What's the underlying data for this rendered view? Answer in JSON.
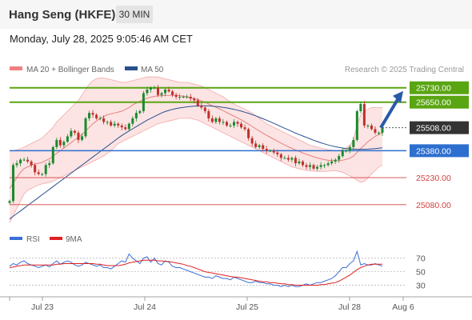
{
  "header": {
    "title": "Hang Seng (HKFE)",
    "timeframe": "30 MIN"
  },
  "timestamp": "Monday, July 28, 2025 9:05:46 AM CET",
  "chart_data": [
    {
      "type": "candlestick",
      "title": "Hang Seng (HKFE)",
      "legend": [
        {
          "name": "MA 20 + Bollinger Bands",
          "color": "#f08080"
        },
        {
          "name": "MA 50",
          "color": "#2a4f8f"
        }
      ],
      "credit": "Research © 2025 Trading Central",
      "y_range": [
        24950,
        25800
      ],
      "x_labels": [
        "Jul 23",
        "Jul 24",
        "Jul 25",
        "Jul 28",
        "Aug 6"
      ],
      "levels": [
        {
          "value": 25730,
          "label": "25730.00",
          "kind": "resistance",
          "color": "#5aa512"
        },
        {
          "value": 25650,
          "label": "25650.00",
          "kind": "resistance",
          "color": "#5aa512"
        },
        {
          "value": 25508,
          "label": "25508.00",
          "kind": "last",
          "color": "#333333"
        },
        {
          "value": 25380,
          "label": "25380.00",
          "kind": "pivot",
          "color": "#2c6fcf"
        },
        {
          "value": 25230,
          "label": "25230.00",
          "kind": "support",
          "color": "#d44040"
        },
        {
          "value": 25080,
          "label": "25080.00",
          "kind": "support",
          "color": "#d44040"
        }
      ],
      "arrow": {
        "from": 25508,
        "to": 25730,
        "direction": "up",
        "color": "#2a5aa8"
      },
      "close": [
        25100,
        25300,
        25310,
        25330,
        25330,
        25320,
        25300,
        25260,
        25250,
        25250,
        25300,
        25310,
        25400,
        25440,
        25410,
        25430,
        25460,
        25490,
        25480,
        25440,
        25460,
        25560,
        25590,
        25580,
        25560,
        25560,
        25540,
        25540,
        25520,
        25530,
        25520,
        25510,
        25500,
        25530,
        25560,
        25590,
        25600,
        25700,
        25720,
        25730,
        25730,
        25690,
        25700,
        25720,
        25710,
        25690,
        25680,
        25680,
        25680,
        25680,
        25670,
        25660,
        25630,
        25620,
        25600,
        25560,
        25540,
        25560,
        25540,
        25540,
        25520,
        25520,
        25540,
        25530,
        25510,
        25500,
        25450,
        25420,
        25400,
        25410,
        25390,
        25380,
        25380,
        25370,
        25360,
        25340,
        25340,
        25330,
        25340,
        25310,
        25320,
        25300,
        25290,
        25300,
        25280,
        25290,
        25300,
        25300,
        25310,
        25320,
        25330,
        25350,
        25380,
        25380,
        25400,
        25440,
        25600,
        25640,
        25520,
        25520,
        25500,
        25480,
        25480,
        25508
      ],
      "ma20": [
        25170,
        25200,
        25230,
        25260,
        25280,
        25290,
        25300,
        25305,
        25310,
        25315,
        25325,
        25335,
        25350,
        25365,
        25380,
        25395,
        25410,
        25425,
        25440,
        25455,
        25470,
        25490,
        25510,
        25530,
        25545,
        25560,
        25570,
        25580,
        25585,
        25590,
        25595,
        25600,
        25610,
        25620,
        25635,
        25645,
        25655,
        25665,
        25672,
        25678,
        25682,
        25685,
        25686,
        25688,
        25688,
        25689,
        25688,
        25686,
        25683,
        25680,
        25676,
        25670,
        25664,
        25657,
        25650,
        25640,
        25630,
        25622,
        25613,
        25603,
        25592,
        25582,
        25572,
        25562,
        25552,
        25540,
        25527,
        25515,
        25502,
        25490,
        25478,
        25466,
        25455,
        25444,
        25433,
        25422,
        25412,
        25402,
        25393,
        25384,
        25376,
        25368,
        25360,
        25353,
        25346,
        25340,
        25335,
        25330,
        25327,
        25325,
        25324,
        25325,
        25327,
        25332,
        25338,
        25350,
        25370,
        25392,
        25410,
        25430,
        25445,
        25460,
        25470,
        25480
      ],
      "bollinger_upper": [
        25380,
        25380,
        25385,
        25390,
        25400,
        25410,
        25420,
        25430,
        25440,
        25450,
        25470,
        25490,
        25510,
        25540,
        25560,
        25580,
        25600,
        25620,
        25640,
        25660,
        25690,
        25720,
        25750,
        25770,
        25780,
        25785,
        25785,
        25780,
        25775,
        25770,
        25765,
        25760,
        25760,
        25765,
        25770,
        25775,
        25780,
        25785,
        25790,
        25790,
        25790,
        25790,
        25785,
        25780,
        25775,
        25770,
        25765,
        25760,
        25760,
        25760,
        25755,
        25750,
        25745,
        25740,
        25730,
        25720,
        25710,
        25700,
        25690,
        25680,
        25665,
        25650,
        25640,
        25630,
        25620,
        25610,
        25600,
        25590,
        25575,
        25560,
        25545,
        25530,
        25520,
        25510,
        25500,
        25490,
        25480,
        25470,
        25460,
        25450,
        25440,
        25430,
        25420,
        25410,
        25405,
        25400,
        25395,
        25390,
        25385,
        25383,
        25382,
        25382,
        25385,
        25395,
        25410,
        25440,
        25520,
        25580,
        25600,
        25610,
        25620,
        25620,
        25620,
        25620
      ],
      "bollinger_lower": [
        24980,
        25020,
        25060,
        25100,
        25140,
        25160,
        25170,
        25180,
        25190,
        25195,
        25200,
        25205,
        25210,
        25220,
        25230,
        25240,
        25250,
        25260,
        25270,
        25280,
        25290,
        25300,
        25310,
        25320,
        25330,
        25340,
        25350,
        25365,
        25380,
        25400,
        25420,
        25430,
        25440,
        25450,
        25460,
        25470,
        25480,
        25490,
        25500,
        25510,
        25520,
        25530,
        25535,
        25540,
        25545,
        25550,
        25555,
        25560,
        25560,
        25560,
        25560,
        25555,
        25550,
        25540,
        25530,
        25520,
        25510,
        25500,
        25490,
        25480,
        25470,
        25460,
        25450,
        25440,
        25430,
        25420,
        25410,
        25400,
        25390,
        25380,
        25370,
        25360,
        25350,
        25340,
        25330,
        25320,
        25310,
        25300,
        25290,
        25285,
        25280,
        25275,
        25270,
        25268,
        25266,
        25265,
        25265,
        25265,
        25266,
        25268,
        25268,
        25265,
        25260,
        25250,
        25240,
        25230,
        25215,
        25205,
        25210,
        25230,
        25250,
        25270,
        25290,
        25300
      ],
      "ma50": [
        25000,
        25015,
        25030,
        25045,
        25060,
        25075,
        25090,
        25105,
        25120,
        25135,
        25150,
        25165,
        25180,
        25195,
        25210,
        25225,
        25240,
        25255,
        25270,
        25285,
        25300,
        25315,
        25330,
        25345,
        25360,
        25375,
        25390,
        25405,
        25420,
        25435,
        25450,
        25465,
        25478,
        25490,
        25502,
        25514,
        25526,
        25538,
        25550,
        25560,
        25570,
        25580,
        25590,
        25598,
        25604,
        25610,
        25614,
        25618,
        25621,
        25624,
        25626,
        25628,
        25629,
        25630,
        25630,
        25629,
        25628,
        25626,
        25624,
        25621,
        25618,
        25614,
        25610,
        25605,
        25600,
        25594,
        25588,
        25581,
        25574,
        25566,
        25558,
        25550,
        25541,
        25532,
        25523,
        25514,
        25505,
        25496,
        25487,
        25478,
        25470,
        25462,
        25454,
        25446,
        25438,
        25431,
        25424,
        25418,
        25412,
        25407,
        25402,
        25398,
        25395,
        25392,
        25390,
        25389,
        25388,
        25388,
        25388,
        25389,
        25390,
        25392,
        25394,
        25396
      ]
    },
    {
      "type": "line",
      "title": "",
      "legend": [
        {
          "name": "RSI",
          "color": "#3a6fd8"
        },
        {
          "name": "9MA",
          "color": "#e02020"
        }
      ],
      "y_range": [
        20,
        85
      ],
      "y_ticks": [
        70,
        50,
        30
      ],
      "rsi": [
        58,
        62,
        60,
        64,
        66,
        62,
        60,
        58,
        56,
        58,
        60,
        57,
        62,
        66,
        61,
        64,
        66,
        64,
        60,
        58,
        60,
        64,
        62,
        60,
        58,
        60,
        56,
        56,
        54,
        58,
        62,
        66,
        64,
        76,
        70,
        66,
        62,
        70,
        72,
        64,
        70,
        62,
        60,
        66,
        64,
        58,
        56,
        56,
        54,
        52,
        50,
        48,
        46,
        44,
        42,
        42,
        40,
        44,
        42,
        40,
        40,
        38,
        42,
        40,
        38,
        36,
        34,
        34,
        36,
        34,
        34,
        32,
        32,
        30,
        30,
        28,
        30,
        28,
        30,
        28,
        28,
        30,
        32,
        30,
        32,
        34,
        34,
        36,
        38,
        40,
        44,
        50,
        56,
        56,
        62,
        66,
        80,
        60,
        62,
        60,
        60,
        62,
        60,
        58
      ],
      "ma9": [
        56,
        57,
        58,
        59,
        60,
        60,
        60,
        60,
        60,
        60,
        60,
        60,
        60,
        61,
        61,
        62,
        62,
        62,
        62,
        62,
        62,
        62,
        62,
        62,
        61,
        61,
        60,
        59,
        59,
        59,
        59,
        60,
        61,
        63,
        64,
        65,
        66,
        67,
        67,
        67,
        67,
        66,
        66,
        65,
        65,
        64,
        63,
        62,
        61,
        59,
        58,
        56,
        54,
        52,
        50,
        49,
        48,
        47,
        46,
        45,
        44,
        43,
        42,
        42,
        41,
        40,
        39,
        38,
        37,
        36,
        35,
        35,
        34,
        34,
        33,
        32,
        32,
        31,
        31,
        30,
        30,
        30,
        30,
        30,
        30,
        30,
        31,
        31,
        32,
        33,
        34,
        36,
        39,
        42,
        45,
        49,
        53,
        56,
        58,
        60,
        61,
        61,
        61,
        61
      ]
    }
  ]
}
